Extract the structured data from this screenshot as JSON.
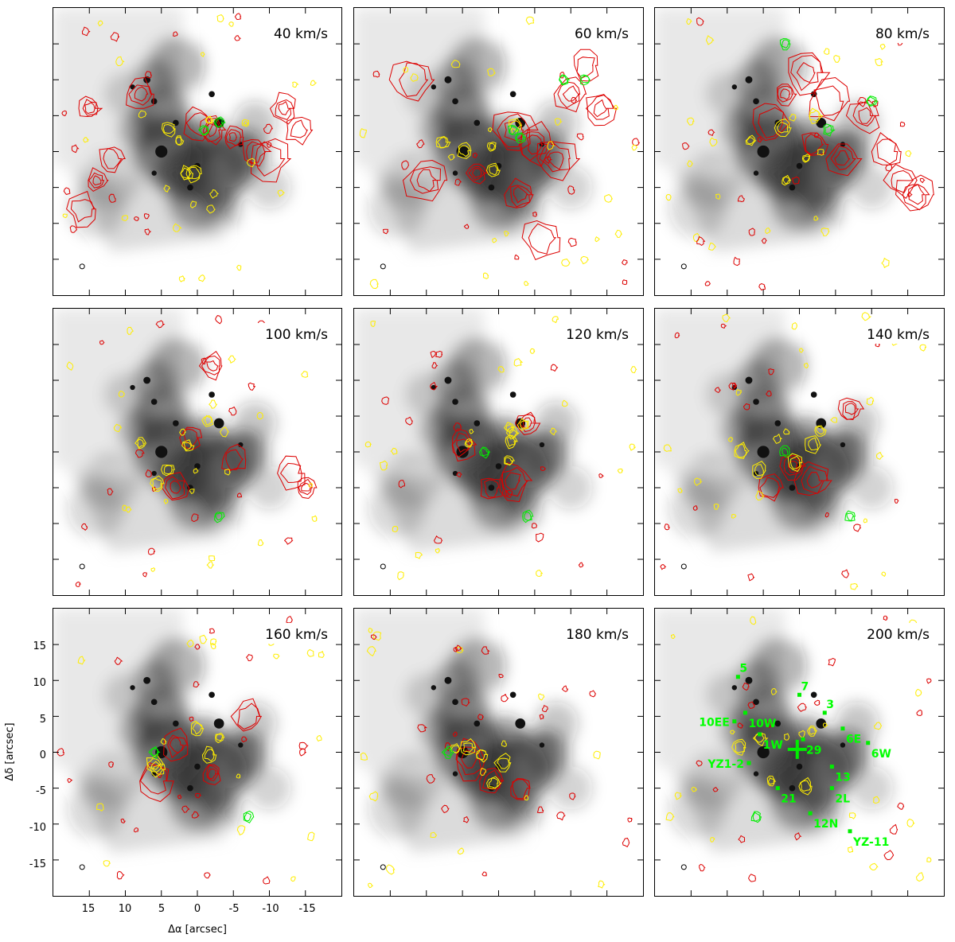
{
  "chart_data": [
    {
      "type": "heatmap",
      "title": "40 km/s"
    },
    {
      "type": "heatmap",
      "title": "60 km/s"
    },
    {
      "type": "heatmap",
      "title": "80 km/s"
    },
    {
      "type": "heatmap",
      "title": "100 km/s"
    },
    {
      "type": "heatmap",
      "title": "120 km/s"
    },
    {
      "type": "heatmap",
      "title": "140 km/s"
    },
    {
      "type": "heatmap",
      "title": "160 km/s"
    },
    {
      "type": "heatmap",
      "title": "180 km/s"
    },
    {
      "type": "heatmap",
      "title": "200 km/s"
    }
  ],
  "axes": {
    "xlabel": "Δα [arcsec]",
    "ylabel": "Δδ [arcsec]",
    "xlim": [
      20,
      -20
    ],
    "ylim": [
      -20,
      20
    ],
    "xticks": [
      15,
      10,
      5,
      0,
      -5,
      -10,
      -15
    ],
    "yticks": [
      15,
      10,
      5,
      0,
      -5,
      -10,
      -15
    ]
  },
  "colors": {
    "contour_red": "#dd0000",
    "contour_yellow": "#ffee00",
    "contour_green": "#00ee00",
    "background": "#ffffff"
  },
  "sources": [
    {
      "name": "5",
      "x": 8.5,
      "y": 10.5
    },
    {
      "name": "10W",
      "x": 7.5,
      "y": 5.5
    },
    {
      "name": "7",
      "x": 0,
      "y": 8.0
    },
    {
      "name": "3",
      "x": -3.5,
      "y": 5.5
    },
    {
      "name": "10EE",
      "x": 9.0,
      "y": 4.3
    },
    {
      "name": "1W",
      "x": 5.5,
      "y": 2.5
    },
    {
      "name": "29",
      "x": -0.5,
      "y": 1.8
    },
    {
      "name": "6E",
      "x": -6.0,
      "y": 3.3
    },
    {
      "name": "6W",
      "x": -9.5,
      "y": 1.3
    },
    {
      "name": "YZ1-2",
      "x": 7.0,
      "y": -1.5
    },
    {
      "name": "13",
      "x": -4.5,
      "y": -2.0
    },
    {
      "name": "21",
      "x": 3.0,
      "y": -5.0
    },
    {
      "name": "2L",
      "x": -4.5,
      "y": -5.0
    },
    {
      "name": "12N",
      "x": -1.5,
      "y": -8.5
    },
    {
      "name": "YZ-11",
      "x": -7.0,
      "y": -11.0
    }
  ]
}
